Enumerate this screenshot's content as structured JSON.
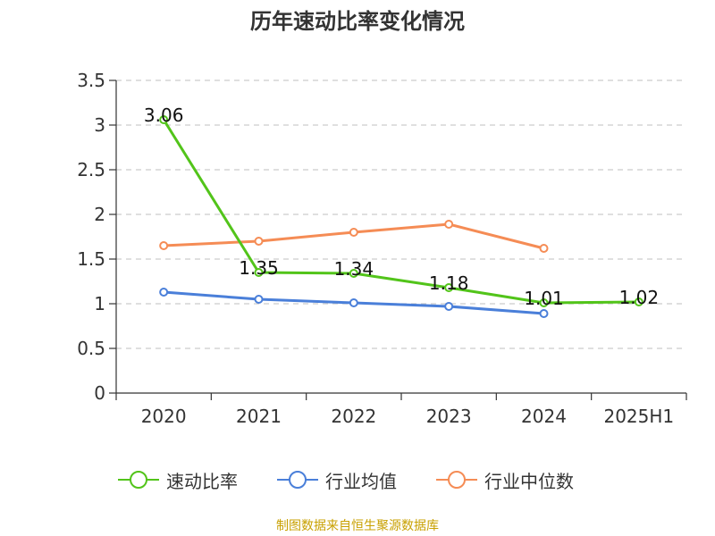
{
  "title": "历年速动比率变化情况",
  "footer": "制图数据来自恒生聚源数据库",
  "chart_data": {
    "type": "line",
    "title": "历年速动比率变化情况",
    "categories": [
      "2020",
      "2021",
      "2022",
      "2023",
      "2024",
      "2025H1"
    ],
    "ylim": [
      0,
      3.5
    ],
    "yticks": [
      "0",
      "0.5",
      "1",
      "1.5",
      "2",
      "2.5",
      "3",
      "3.5"
    ],
    "grid": true,
    "legend_position": "bottom",
    "series": [
      {
        "name": "速动比率",
        "color": "#52c41a",
        "values": [
          3.06,
          1.35,
          1.34,
          1.18,
          1.01,
          1.02
        ],
        "labels": [
          "3.06",
          "1.35",
          "1.34",
          "1.18",
          "1.01",
          "1.02"
        ]
      },
      {
        "name": "行业均值",
        "color": "#4a7fd9",
        "values": [
          1.13,
          1.05,
          1.01,
          0.97,
          0.89,
          null
        ]
      },
      {
        "name": "行业中位数",
        "color": "#f58c55",
        "values": [
          1.65,
          1.7,
          1.8,
          1.89,
          1.62,
          null
        ]
      }
    ]
  }
}
